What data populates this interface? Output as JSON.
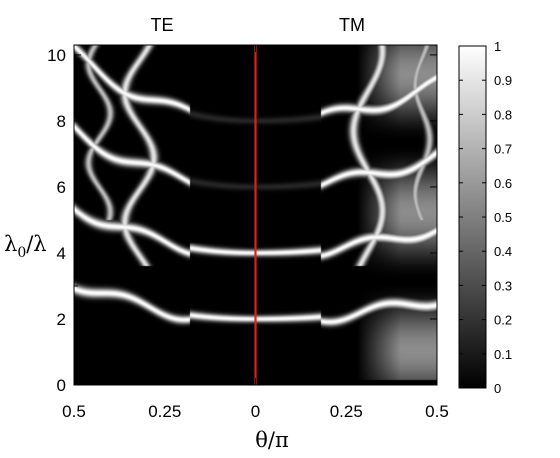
{
  "chart_data": {
    "type": "heatmap",
    "title": "",
    "panel_labels": {
      "left": "TE",
      "right": "TM"
    },
    "xlabel": "θ/π",
    "ylabel": "λ0/λ",
    "ylabel_main": "λ",
    "ylabel_sub": "0",
    "ylabel_tail": "/λ",
    "x_ticks": [
      -0.5,
      -0.25,
      0,
      0.25,
      0.5
    ],
    "x_tick_labels": [
      "0.5",
      "0.25",
      "0",
      "0.25",
      "0.5"
    ],
    "xlim": [
      -0.5,
      0.5
    ],
    "y_ticks": [
      0,
      2,
      4,
      6,
      8,
      10
    ],
    "y_tick_labels": [
      "0",
      "2",
      "4",
      "6",
      "8",
      "10"
    ],
    "ylim": [
      0,
      10.3
    ],
    "colorbar": {
      "range": [
        0,
        1
      ],
      "ticks": [
        0,
        0.1,
        0.2,
        0.3,
        0.4,
        0.5,
        0.6,
        0.7,
        0.8,
        0.9,
        1
      ],
      "tick_labels": [
        "0",
        "0.1",
        "0.2",
        "0.3",
        "0.4",
        "0.5",
        "0.6",
        "0.7",
        "0.8",
        "0.9",
        "1"
      ],
      "colormap": "gray (black = 0, white = 1)"
    },
    "divider": {
      "x": 0,
      "color": "#e0201b"
    },
    "bright_bands": {
      "normal_incidence_y": [
        2,
        4,
        6,
        8
      ],
      "approximate": true
    },
    "grid": false,
    "legend": "none"
  }
}
